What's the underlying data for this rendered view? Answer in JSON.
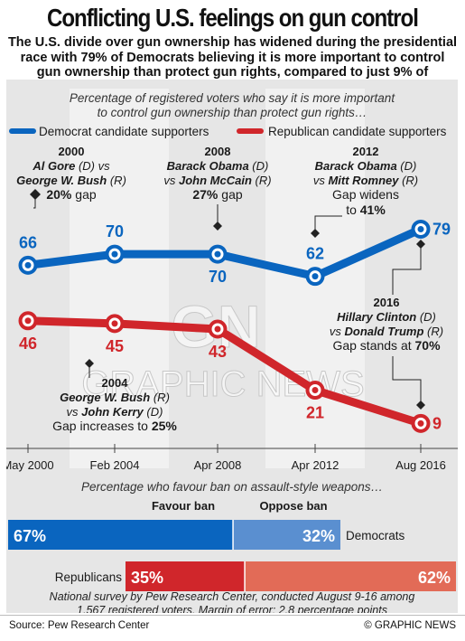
{
  "title": "Conflicting U.S. feelings on gun control",
  "subtitle": "The U.S. divide over gun ownership has widened during the presidential race with 79% of Democrats believing it is more important to control gun ownership than protect gun rights, compared to just 9% of Republicans",
  "colors": {
    "democrat": "#0a65bf",
    "democrat_light": "#5a8fd0",
    "republican": "#d0262b",
    "republican_light": "#e26b57",
    "panel_bg": "#e6e6e6",
    "band": "#f1f1f1"
  },
  "chart_data": [
    {
      "type": "line",
      "title": "Percentage of registered voters who say it is more important to control gun ownership than protect gun rights…",
      "categories": [
        "May 2000",
        "Feb 2004",
        "Apr 2008",
        "Apr 2012",
        "Aug 2016"
      ],
      "ylim": [
        0,
        100
      ],
      "legend_placement": "top",
      "series": [
        {
          "name": "Democrat candidate supporters",
          "values": [
            66,
            70,
            70,
            62,
            79
          ]
        },
        {
          "name": "Republican candidate supporters",
          "values": [
            46,
            45,
            43,
            21,
            9
          ]
        }
      ],
      "annotations": [
        {
          "year": "2000",
          "lines": [
            "Al Gore (D) vs",
            "George W. Bush (R)",
            "20% gap"
          ]
        },
        {
          "year": "2004",
          "lines": [
            "George W. Bush (R)",
            "vs John Kerry (D)",
            "Gap increases to 25%"
          ]
        },
        {
          "year": "2008",
          "lines": [
            "Barack Obama (D)",
            "vs John McCain (R)",
            "27% gap"
          ]
        },
        {
          "year": "2012",
          "lines": [
            "Barack Obama (D)",
            "vs Mitt Romney (R)",
            "Gap widens",
            "to 41%"
          ]
        },
        {
          "year": "2016",
          "lines": [
            "Hillary Clinton (D)",
            "vs Donald Trump (R)",
            "Gap stands at 70%"
          ]
        }
      ]
    },
    {
      "type": "bar",
      "stacked": true,
      "title": "Percentage who favour ban on assault-style weapons…",
      "categories": [
        "Democrats",
        "Republicans"
      ],
      "series": [
        {
          "name": "Favour ban",
          "values": [
            67,
            35
          ]
        },
        {
          "name": "Oppose ban",
          "values": [
            32,
            62
          ]
        }
      ]
    }
  ],
  "note": "National survey by Pew Research Center, conducted August 9-16 among 1,567 registered voters. Margin of error: 2.8 percentage points",
  "source": "Source: Pew Research Center",
  "credit": "© GRAPHIC NEWS",
  "watermark": {
    "logo": "GN",
    "text": "GRAPHIC NEWS"
  }
}
